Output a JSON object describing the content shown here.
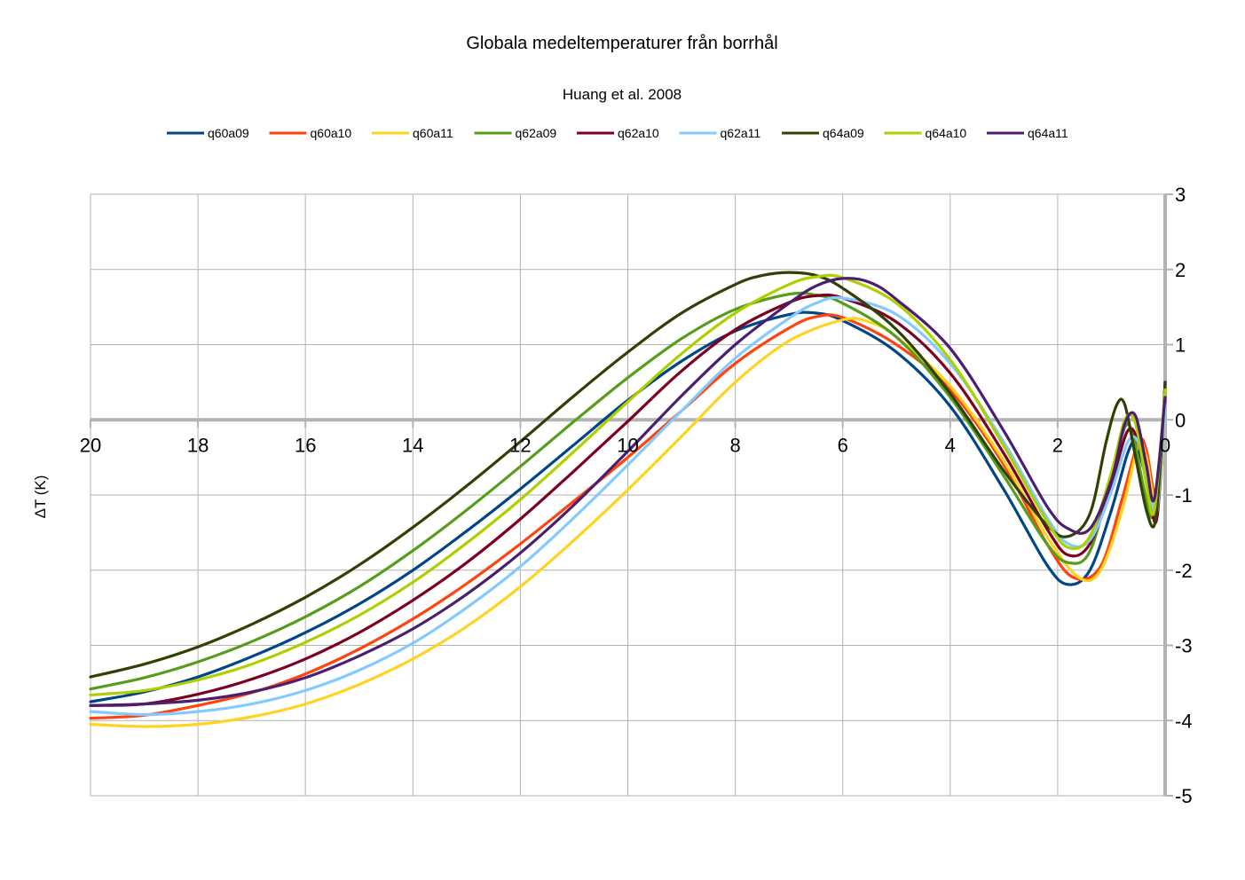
{
  "chart_data": {
    "type": "line",
    "title": "Globala medeltemperaturer från borrhål",
    "subtitle": "Huang et al. 2008",
    "ylabel": "ΔT (K)",
    "xlabel": "",
    "xlim": [
      20,
      0
    ],
    "ylim": [
      -5,
      3
    ],
    "x_ticks": [
      "20",
      "18",
      "16",
      "14",
      "12",
      "10",
      "8",
      "6",
      "4",
      "2",
      "0"
    ],
    "y_ticks": [
      "3",
      "2",
      "1",
      "0",
      "-1",
      "-2",
      "-3",
      "-4",
      "-5"
    ],
    "grid": true,
    "legend_position": "top",
    "series": [
      {
        "name": "q60a09",
        "color": "#004586",
        "points": [
          [
            20,
            -3.75
          ],
          [
            19,
            -3.62
          ],
          [
            18,
            -3.42
          ],
          [
            17,
            -3.15
          ],
          [
            16,
            -2.83
          ],
          [
            15,
            -2.45
          ],
          [
            14,
            -2.0
          ],
          [
            13,
            -1.48
          ],
          [
            12,
            -0.92
          ],
          [
            11,
            -0.33
          ],
          [
            10,
            0.26
          ],
          [
            9,
            0.78
          ],
          [
            8,
            1.18
          ],
          [
            7,
            1.4
          ],
          [
            6.5,
            1.42
          ],
          [
            6,
            1.32
          ],
          [
            5,
            0.9
          ],
          [
            4,
            0.18
          ],
          [
            3,
            -0.93
          ],
          [
            2.2,
            -1.93
          ],
          [
            1.8,
            -2.19
          ],
          [
            1.4,
            -2.0
          ],
          [
            1.0,
            -1.2
          ],
          [
            0.7,
            -0.45
          ],
          [
            0.55,
            -0.3
          ],
          [
            0.4,
            -0.65
          ],
          [
            0.25,
            -1.0
          ],
          [
            0.1,
            -0.7
          ],
          [
            0,
            0.5
          ]
        ]
      },
      {
        "name": "q60a10",
        "color": "#ff420e",
        "points": [
          [
            20,
            -3.97
          ],
          [
            19,
            -3.93
          ],
          [
            18,
            -3.8
          ],
          [
            17,
            -3.63
          ],
          [
            16,
            -3.38
          ],
          [
            15,
            -3.05
          ],
          [
            14,
            -2.65
          ],
          [
            13,
            -2.18
          ],
          [
            12,
            -1.65
          ],
          [
            11,
            -1.08
          ],
          [
            10,
            -0.5
          ],
          [
            9,
            0.12
          ],
          [
            8,
            0.75
          ],
          [
            7,
            1.22
          ],
          [
            6.5,
            1.37
          ],
          [
            6,
            1.36
          ],
          [
            5,
            1.0
          ],
          [
            4,
            0.4
          ],
          [
            3,
            -0.6
          ],
          [
            2.2,
            -1.65
          ],
          [
            1.7,
            -2.1
          ],
          [
            1.2,
            -1.95
          ],
          [
            0.8,
            -1.05
          ],
          [
            0.5,
            -0.3
          ],
          [
            0.35,
            -0.4
          ],
          [
            0.2,
            -1.0
          ],
          [
            0.1,
            -0.9
          ],
          [
            0,
            0.3
          ]
        ]
      },
      {
        "name": "q60a11",
        "color": "#ffd320",
        "points": [
          [
            20,
            -4.05
          ],
          [
            19,
            -4.08
          ],
          [
            18,
            -4.05
          ],
          [
            17,
            -3.95
          ],
          [
            16,
            -3.78
          ],
          [
            15,
            -3.52
          ],
          [
            14,
            -3.18
          ],
          [
            13,
            -2.75
          ],
          [
            12,
            -2.22
          ],
          [
            11,
            -1.6
          ],
          [
            10,
            -0.93
          ],
          [
            9,
            -0.22
          ],
          [
            8,
            0.5
          ],
          [
            7,
            1.05
          ],
          [
            6,
            1.33
          ],
          [
            5.5,
            1.3
          ],
          [
            5,
            1.1
          ],
          [
            4,
            0.45
          ],
          [
            3,
            -0.55
          ],
          [
            2.2,
            -1.55
          ],
          [
            1.6,
            -2.1
          ],
          [
            1.2,
            -2.0
          ],
          [
            0.8,
            -1.2
          ],
          [
            0.5,
            -0.35
          ],
          [
            0.35,
            -0.5
          ],
          [
            0.2,
            -1.1
          ],
          [
            0.1,
            -0.95
          ],
          [
            0,
            0.2
          ]
        ]
      },
      {
        "name": "q62a09",
        "color": "#579d1c",
        "points": [
          [
            20,
            -3.58
          ],
          [
            19,
            -3.43
          ],
          [
            18,
            -3.22
          ],
          [
            17,
            -2.95
          ],
          [
            16,
            -2.62
          ],
          [
            15,
            -2.22
          ],
          [
            14,
            -1.74
          ],
          [
            13,
            -1.2
          ],
          [
            12,
            -0.62
          ],
          [
            11,
            -0.02
          ],
          [
            10,
            0.56
          ],
          [
            9,
            1.08
          ],
          [
            8,
            1.47
          ],
          [
            7,
            1.67
          ],
          [
            6.5,
            1.66
          ],
          [
            6,
            1.55
          ],
          [
            5,
            1.1
          ],
          [
            4,
            0.3
          ],
          [
            3,
            -0.75
          ],
          [
            2.2,
            -1.65
          ],
          [
            1.8,
            -1.9
          ],
          [
            1.4,
            -1.75
          ],
          [
            1.0,
            -0.75
          ],
          [
            0.75,
            -0.1
          ],
          [
            0.6,
            -0.2
          ],
          [
            0.4,
            -0.9
          ],
          [
            0.25,
            -1.3
          ],
          [
            0.1,
            -0.8
          ],
          [
            0,
            0.4
          ]
        ]
      },
      {
        "name": "q62a10",
        "color": "#7e0021",
        "points": [
          [
            20,
            -3.8
          ],
          [
            19,
            -3.78
          ],
          [
            18,
            -3.65
          ],
          [
            17,
            -3.45
          ],
          [
            16,
            -3.18
          ],
          [
            15,
            -2.83
          ],
          [
            14,
            -2.4
          ],
          [
            13,
            -1.9
          ],
          [
            12,
            -1.32
          ],
          [
            11,
            -0.68
          ],
          [
            10,
            -0.02
          ],
          [
            9,
            0.65
          ],
          [
            8,
            1.2
          ],
          [
            7,
            1.56
          ],
          [
            6.5,
            1.65
          ],
          [
            6,
            1.62
          ],
          [
            5,
            1.3
          ],
          [
            4,
            0.62
          ],
          [
            3,
            -0.45
          ],
          [
            2.2,
            -1.45
          ],
          [
            1.8,
            -1.8
          ],
          [
            1.4,
            -1.65
          ],
          [
            1.0,
            -0.85
          ],
          [
            0.7,
            -0.15
          ],
          [
            0.5,
            -0.3
          ],
          [
            0.3,
            -1.0
          ],
          [
            0.15,
            -1.3
          ],
          [
            0,
            0.3
          ]
        ]
      },
      {
        "name": "q62a11",
        "color": "#83caff",
        "points": [
          [
            20,
            -3.88
          ],
          [
            19,
            -3.92
          ],
          [
            18,
            -3.88
          ],
          [
            17,
            -3.78
          ],
          [
            16,
            -3.6
          ],
          [
            15,
            -3.33
          ],
          [
            14,
            -2.97
          ],
          [
            13,
            -2.5
          ],
          [
            12,
            -1.95
          ],
          [
            11,
            -1.3
          ],
          [
            10,
            -0.6
          ],
          [
            9,
            0.12
          ],
          [
            8,
            0.82
          ],
          [
            7,
            1.35
          ],
          [
            6.5,
            1.55
          ],
          [
            6,
            1.62
          ],
          [
            5,
            1.4
          ],
          [
            4,
            0.75
          ],
          [
            3,
            -0.3
          ],
          [
            2.2,
            -1.3
          ],
          [
            1.8,
            -1.65
          ],
          [
            1.4,
            -1.6
          ],
          [
            1.0,
            -0.95
          ],
          [
            0.7,
            -0.3
          ],
          [
            0.5,
            -0.3
          ],
          [
            0.3,
            -0.9
          ],
          [
            0.15,
            -1.2
          ],
          [
            0,
            0.2
          ]
        ]
      },
      {
        "name": "q64a09",
        "color": "#314004",
        "points": [
          [
            20,
            -3.42
          ],
          [
            19,
            -3.25
          ],
          [
            18,
            -3.02
          ],
          [
            17,
            -2.72
          ],
          [
            16,
            -2.36
          ],
          [
            15,
            -1.93
          ],
          [
            14,
            -1.43
          ],
          [
            13,
            -0.88
          ],
          [
            12,
            -0.29
          ],
          [
            11,
            0.32
          ],
          [
            10,
            0.9
          ],
          [
            9,
            1.42
          ],
          [
            8,
            1.8
          ],
          [
            7.5,
            1.92
          ],
          [
            7,
            1.96
          ],
          [
            6.5,
            1.92
          ],
          [
            6,
            1.75
          ],
          [
            5,
            1.2
          ],
          [
            4,
            0.35
          ],
          [
            3,
            -0.68
          ],
          [
            2.2,
            -1.4
          ],
          [
            1.8,
            -1.55
          ],
          [
            1.4,
            -1.25
          ],
          [
            1.1,
            -0.3
          ],
          [
            0.9,
            0.2
          ],
          [
            0.75,
            0.2
          ],
          [
            0.55,
            -0.5
          ],
          [
            0.35,
            -1.2
          ],
          [
            0.2,
            -1.4
          ],
          [
            0.1,
            -0.7
          ],
          [
            0,
            0.5
          ]
        ]
      },
      {
        "name": "q64a10",
        "color": "#aecf00",
        "points": [
          [
            20,
            -3.66
          ],
          [
            19,
            -3.6
          ],
          [
            18,
            -3.46
          ],
          [
            17,
            -3.25
          ],
          [
            16,
            -2.96
          ],
          [
            15,
            -2.6
          ],
          [
            14,
            -2.16
          ],
          [
            13,
            -1.64
          ],
          [
            12,
            -1.06
          ],
          [
            11,
            -0.42
          ],
          [
            10,
            0.24
          ],
          [
            9,
            0.88
          ],
          [
            8,
            1.42
          ],
          [
            7,
            1.8
          ],
          [
            6.5,
            1.9
          ],
          [
            6,
            1.89
          ],
          [
            5,
            1.55
          ],
          [
            4,
            0.8
          ],
          [
            3,
            -0.35
          ],
          [
            2.2,
            -1.35
          ],
          [
            1.8,
            -1.7
          ],
          [
            1.4,
            -1.55
          ],
          [
            1.0,
            -0.7
          ],
          [
            0.75,
            0.0
          ],
          [
            0.55,
            -0.05
          ],
          [
            0.35,
            -0.85
          ],
          [
            0.2,
            -1.2
          ],
          [
            0,
            0.4
          ]
        ]
      },
      {
        "name": "q64a11",
        "color": "#4b1f6f",
        "points": [
          [
            20,
            -3.8
          ],
          [
            19,
            -3.78
          ],
          [
            18,
            -3.73
          ],
          [
            17,
            -3.62
          ],
          [
            16,
            -3.43
          ],
          [
            15,
            -3.14
          ],
          [
            14,
            -2.78
          ],
          [
            13,
            -2.32
          ],
          [
            12,
            -1.77
          ],
          [
            11,
            -1.13
          ],
          [
            10,
            -0.42
          ],
          [
            9,
            0.32
          ],
          [
            8,
            1.0
          ],
          [
            7,
            1.55
          ],
          [
            6.5,
            1.78
          ],
          [
            6,
            1.88
          ],
          [
            5.5,
            1.83
          ],
          [
            5,
            1.6
          ],
          [
            4,
            0.95
          ],
          [
            3,
            -0.15
          ],
          [
            2.2,
            -1.15
          ],
          [
            1.8,
            -1.45
          ],
          [
            1.4,
            -1.45
          ],
          [
            1.0,
            -0.8
          ],
          [
            0.75,
            -0.05
          ],
          [
            0.55,
            0.05
          ],
          [
            0.35,
            -0.6
          ],
          [
            0.2,
            -1.05
          ],
          [
            0,
            0.3
          ]
        ]
      }
    ]
  }
}
